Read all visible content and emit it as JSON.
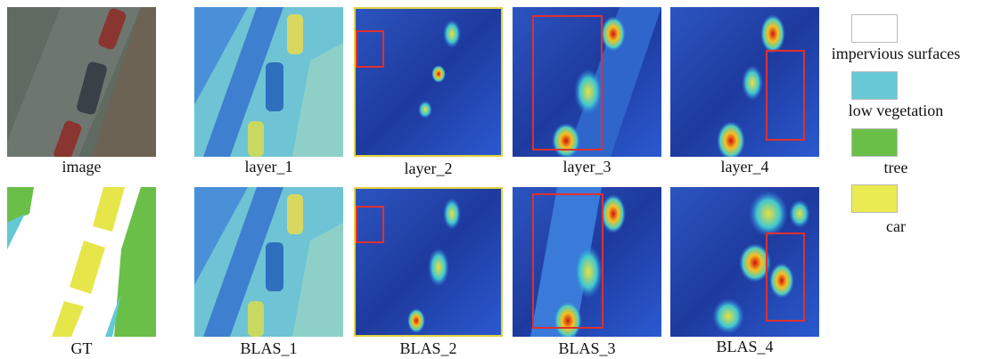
{
  "figure": {
    "rows": [
      {
        "captions": [
          "image",
          "layer_1",
          "layer_2",
          "layer_3",
          "layer_4"
        ]
      },
      {
        "captions": [
          "GT",
          "BLAS_1",
          "BLAS_2",
          "BLAS_3",
          "BLAS_4"
        ]
      }
    ],
    "legend": [
      "impervious surfaces",
      "low vegetation",
      "tree",
      "car"
    ]
  }
}
